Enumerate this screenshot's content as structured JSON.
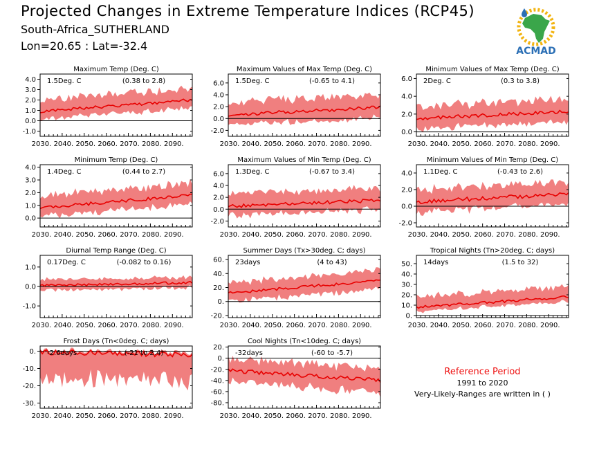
{
  "header": {
    "title": "Projected Changes in Extreme Temperature Indices (RCP45)",
    "region": "South-Africa_SUTHERLAND",
    "coords": "Lon=20.65 : Lat=-32.4"
  },
  "logo": {
    "text": "ACMAD",
    "brand_color": "#2b6fb5",
    "africa_color": "#3aa64a",
    "sun_color": "#f2b411"
  },
  "reference": {
    "title": "Reference Period",
    "years": "1991 to 2020",
    "note": "Very-Likely-Ranges are written in ( )"
  },
  "colors": {
    "band": "#f07f7f",
    "line": "#e80000",
    "zero": "#000000"
  },
  "chart_data": [
    {
      "type": "area",
      "title": "Maximum Temp (Deg. C)",
      "value_label": "1.5Deg. C",
      "range_label": "(0.38 to 2.8)",
      "x_range": [
        2030,
        2099
      ],
      "x_ticks": [
        2030,
        2040,
        2050,
        2060,
        2070,
        2080,
        2090
      ],
      "x_tick_labels": [
        "2030.",
        "2040.",
        "2050.",
        "2060.",
        "2070.",
        "2080.",
        "2090."
      ],
      "ylim": [
        -1.5,
        4.5
      ],
      "y_ticks": [
        -1.0,
        0.0,
        1.0,
        2.0,
        3.0,
        4.0
      ],
      "y_tick_labels": [
        "-1.0",
        "0.0",
        "1.0",
        "2.0",
        "3.0",
        "4.0"
      ],
      "median_start": 0.9,
      "median_end": 2.0,
      "lower_offset": 0.9,
      "upper_offset": 1.3,
      "noise": 0.3
    },
    {
      "type": "area",
      "title": "Maximum Values of Max Temp (Deg. C)",
      "value_label": "1.5Deg. C",
      "range_label": "(-0.65 to 4.1)",
      "x_range": [
        2030,
        2099
      ],
      "x_ticks": [
        2030,
        2040,
        2050,
        2060,
        2070,
        2080,
        2090
      ],
      "x_tick_labels": [
        "2030.",
        "2040.",
        "2050.",
        "2060.",
        "2070.",
        "2080.",
        "2090."
      ],
      "ylim": [
        -3.0,
        7.5
      ],
      "y_ticks": [
        -2.0,
        0.0,
        2.0,
        4.0,
        6.0
      ],
      "y_tick_labels": [
        "-2.0",
        "0.0",
        "2.0",
        "4.0",
        "6.0"
      ],
      "median_start": 0.6,
      "median_end": 1.9,
      "lower_offset": 2.0,
      "upper_offset": 2.5,
      "noise": 0.6
    },
    {
      "type": "area",
      "title": "Minimum Values of Max Temp (Deg. C)",
      "value_label": "2Deg. C",
      "range_label": "(0.3 to 3.8)",
      "x_range": [
        2030,
        2099
      ],
      "x_ticks": [
        2030,
        2040,
        2050,
        2060,
        2070,
        2080,
        2090
      ],
      "x_tick_labels": [
        "2030.",
        "2040.",
        "2050.",
        "2060.",
        "2070.",
        "2080.",
        "2090."
      ],
      "ylim": [
        -0.5,
        6.5
      ],
      "y_ticks": [
        0.0,
        2.0,
        4.0,
        6.0
      ],
      "y_tick_labels": [
        "0.0",
        "2.0",
        "4.0",
        "6.0"
      ],
      "median_start": 1.5,
      "median_end": 2.3,
      "lower_offset": 1.3,
      "upper_offset": 1.6,
      "noise": 0.4
    },
    {
      "type": "area",
      "title": "Minimum Temp (Deg. C)",
      "value_label": "1.4Deg. C",
      "range_label": "(0.44 to 2.7)",
      "x_range": [
        2030,
        2099
      ],
      "x_ticks": [
        2030,
        2040,
        2050,
        2060,
        2070,
        2080,
        2090
      ],
      "x_tick_labels": [
        "2030.",
        "2040.",
        "2050.",
        "2060.",
        "2070.",
        "2080.",
        "2090."
      ],
      "ylim": [
        -0.7,
        4.2
      ],
      "y_ticks": [
        0.0,
        1.0,
        2.0,
        3.0,
        4.0
      ],
      "y_tick_labels": [
        "0.0",
        "1.0",
        "2.0",
        "3.0",
        "4.0"
      ],
      "median_start": 0.8,
      "median_end": 1.8,
      "lower_offset": 0.8,
      "upper_offset": 1.1,
      "noise": 0.25
    },
    {
      "type": "area",
      "title": "Maximum Values of Min Temp (Deg. C)",
      "value_label": "1.3Deg. C",
      "range_label": "(-0.67 to 3.4)",
      "x_range": [
        2030,
        2099
      ],
      "x_ticks": [
        2030,
        2040,
        2050,
        2060,
        2070,
        2080,
        2090
      ],
      "x_tick_labels": [
        "2030.",
        "2040.",
        "2050.",
        "2060.",
        "2070.",
        "2080.",
        "2090."
      ],
      "ylim": [
        -3.0,
        7.5
      ],
      "y_ticks": [
        -2.0,
        0.0,
        2.0,
        4.0,
        6.0
      ],
      "y_tick_labels": [
        "-2.0",
        "0.0",
        "2.0",
        "4.0",
        "6.0"
      ],
      "median_start": 0.5,
      "median_end": 1.5,
      "lower_offset": 1.8,
      "upper_offset": 2.4,
      "noise": 0.6
    },
    {
      "type": "area",
      "title": "Minimum Values of Min Temp (Deg. C)",
      "value_label": "1.1Deg. C",
      "range_label": "(-0.43 to 2.6)",
      "x_range": [
        2030,
        2099
      ],
      "x_ticks": [
        2030,
        2040,
        2050,
        2060,
        2070,
        2080,
        2090
      ],
      "x_tick_labels": [
        "2030.",
        "2040.",
        "2050.",
        "2060.",
        "2070.",
        "2080.",
        "2090."
      ],
      "ylim": [
        -2.5,
        5.0
      ],
      "y_ticks": [
        -2.0,
        0.0,
        2.0,
        4.0
      ],
      "y_tick_labels": [
        "-2.0",
        "0.0",
        "2.0",
        "4.0"
      ],
      "median_start": 0.5,
      "median_end": 1.5,
      "lower_offset": 1.4,
      "upper_offset": 1.7,
      "noise": 0.5
    },
    {
      "type": "area",
      "title": "Diurnal Temp Range (Deg. C)",
      "value_label": "0.17Deg. C",
      "range_label": "(-0.082 to 0.16)",
      "x_range": [
        2030,
        2099
      ],
      "x_ticks": [
        2030,
        2040,
        2050,
        2060,
        2070,
        2080,
        2090
      ],
      "x_tick_labels": [
        "2030.",
        "2040.",
        "2050.",
        "2060.",
        "2070.",
        "2080.",
        "2090."
      ],
      "ylim": [
        -1.6,
        1.6
      ],
      "y_ticks": [
        -1.0,
        0.0,
        1.0
      ],
      "y_tick_labels": [
        "-1.0",
        "0.0",
        "1.0"
      ],
      "median_start": 0.05,
      "median_end": 0.2,
      "lower_offset": 0.3,
      "upper_offset": 0.35,
      "noise": 0.12
    },
    {
      "type": "area",
      "title": "Summer Days (Tx>30deg. C; days)",
      "value_label": "23days",
      "range_label": "(4 to 43)",
      "x_range": [
        2030,
        2099
      ],
      "x_ticks": [
        2030,
        2040,
        2050,
        2060,
        2070,
        2080,
        2090
      ],
      "x_tick_labels": [
        "2030.",
        "2040.",
        "2050.",
        "2060.",
        "2070.",
        "2080.",
        "2090."
      ],
      "ylim": [
        -23,
        66
      ],
      "y_ticks": [
        -20,
        0,
        20,
        40,
        60
      ],
      "y_tick_labels": [
        "-20.",
        "0.",
        "20.",
        "40.",
        "60."
      ],
      "median_start": 12,
      "median_end": 30,
      "lower_offset": 14,
      "upper_offset": 17,
      "noise": 4
    },
    {
      "type": "area",
      "title": "Tropical Nights (Tn>20deg. C; days)",
      "value_label": "14days",
      "range_label": "(1.5 to 32)",
      "x_range": [
        2030,
        2099
      ],
      "x_ticks": [
        2030,
        2040,
        2050,
        2060,
        2070,
        2080,
        2090
      ],
      "x_tick_labels": [
        "2030.",
        "2040.",
        "2050.",
        "2060.",
        "2070.",
        "2080.",
        "2090."
      ],
      "ylim": [
        -2,
        58
      ],
      "y_ticks": [
        0,
        10,
        20,
        30,
        40,
        50
      ],
      "y_tick_labels": [
        "0.",
        "10.",
        "20.",
        "30.",
        "40.",
        "50."
      ],
      "median_start": 8,
      "median_end": 18,
      "lower_offset": 5,
      "upper_offset": 12,
      "noise": 2.5
    },
    {
      "type": "area",
      "title": "Frost Days (Tn<0deg. C; days)",
      "value_label": "-2.6days",
      "range_label": "(-21 to 2.4)",
      "x_range": [
        2030,
        2099
      ],
      "x_ticks": [
        2030,
        2040,
        2050,
        2060,
        2070,
        2080,
        2090
      ],
      "x_tick_labels": [
        "2030.",
        "2040.",
        "2050.",
        "2060.",
        "2070.",
        "2080.",
        "2090."
      ],
      "ylim": [
        -33,
        3
      ],
      "y_ticks": [
        -30,
        -20,
        -10,
        0
      ],
      "y_tick_labels": [
        "-30.",
        "-20.",
        "-10.",
        "0."
      ],
      "median_start": -0.5,
      "median_end": -2.0,
      "lower_offset": 18,
      "upper_offset": 1.5,
      "noise": 3
    },
    {
      "type": "area",
      "title": "Cool Nights (Tn<10deg. C; days)",
      "value_label": "-32days",
      "range_label": "(-60 to -5.7)",
      "x_range": [
        2030,
        2099
      ],
      "x_ticks": [
        2030,
        2040,
        2050,
        2060,
        2070,
        2080,
        2090
      ],
      "x_tick_labels": [
        "2030.",
        "2040.",
        "2050.",
        "2060.",
        "2070.",
        "2080.",
        "2090."
      ],
      "ylim": [
        -90,
        22
      ],
      "y_ticks": [
        -80,
        -60,
        -40,
        -20,
        0,
        20
      ],
      "y_tick_labels": [
        "-80.",
        "-60.",
        "-40.",
        "-20.",
        "0.",
        "20."
      ],
      "median_start": -22,
      "median_end": -40,
      "lower_offset": 25,
      "upper_offset": 25,
      "noise": 7
    }
  ]
}
